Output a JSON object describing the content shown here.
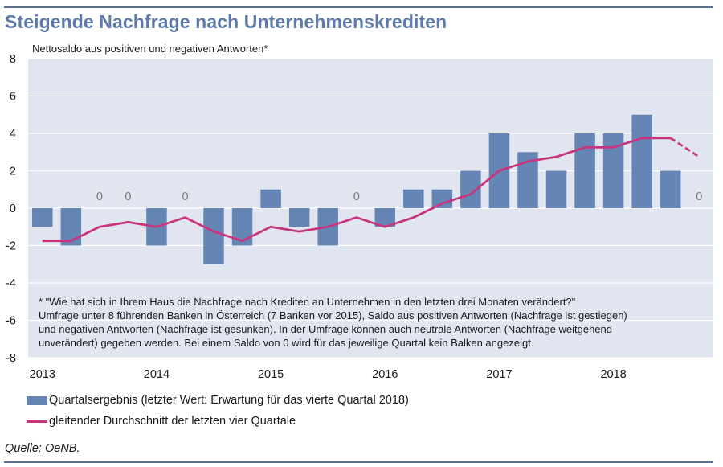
{
  "title": "Steigende Nachfrage nach Unternehmenskrediten",
  "subtitle": "Nettosaldo aus positiven  und negativen Antworten*",
  "footnote": [
    "* \"Wie hat sich  in Ihrem Haus die Nachfrage nach Krediten an Unternehmen in den letzten drei Monaten verändert?\"",
    "Umfrage unter 8 führenden Banken in Österreich (7 Banken vor 2015), Saldo aus positiven Antworten (Nachfrage ist gestiegen)",
    "und negativen Antworten (Nachfrage ist gesunken). In der Umfrage können auch neutrale Antworten (Nachfrage weitgehend",
    "unverändert) gegeben werden. Bei einem Saldo von 0 wird für das jeweilige Quartal kein Balken angezeigt."
  ],
  "legend": {
    "bar": "Quartalsergebnis (letzter Wert: Erwartung für das vierte Quartal 2018)",
    "line": "gleitender Durchschnitt der letzten vier Quartale"
  },
  "source": "Quelle: OeNB.",
  "colors": {
    "bar": "#6585b4",
    "line": "#c8357e",
    "plot_bg": "#e1e5f0",
    "title": "#5d7aa8"
  },
  "chart_data": {
    "type": "bar",
    "ylim": [
      -8,
      8
    ],
    "yticks": [
      8,
      6,
      4,
      2,
      0,
      -2,
      -4,
      -6,
      -8
    ],
    "year_labels": [
      "2013",
      "2014",
      "2015",
      "2016",
      "2017",
      "2018"
    ],
    "zero_label": "0",
    "grid": true,
    "series": [
      {
        "name": "Quartalsergebnis",
        "type": "bar",
        "values": [
          -1,
          -2,
          0,
          0,
          -2,
          0,
          -3,
          -2,
          1,
          -1,
          -2,
          0,
          -1,
          1,
          1,
          2,
          4,
          3,
          2,
          4,
          4,
          5,
          2,
          0
        ]
      },
      {
        "name": "gleitender Durchschnitt",
        "type": "line",
        "values": [
          -1.75,
          -1.75,
          -1.0,
          -0.75,
          -1.0,
          -0.5,
          -1.25,
          -1.75,
          -1.0,
          -1.25,
          -1.0,
          -0.5,
          -1.0,
          -0.5,
          0.25,
          0.75,
          2.0,
          2.5,
          2.75,
          3.25,
          3.25,
          3.75,
          3.75,
          2.75
        ],
        "dashed_last_segments": 1
      }
    ]
  }
}
